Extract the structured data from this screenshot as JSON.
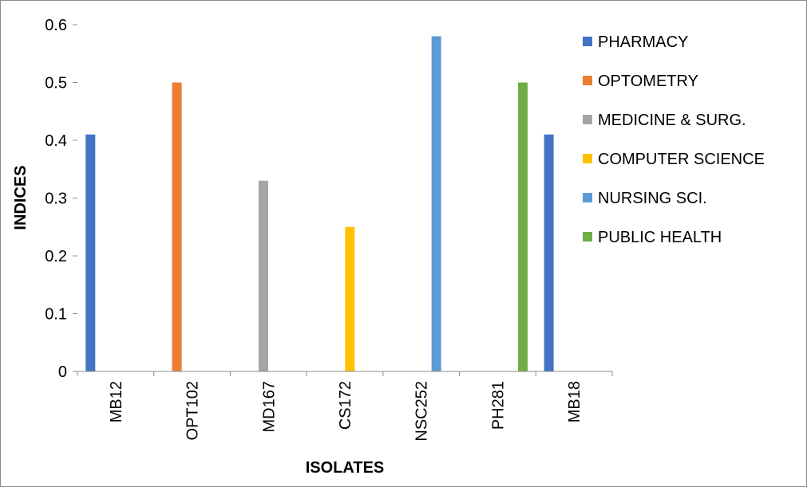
{
  "chart_data": {
    "type": "bar",
    "title": "",
    "xlabel": "ISOLATES",
    "ylabel": "INDICES",
    "categories": [
      "MB12",
      "OPT102",
      "MD167",
      "CS172",
      "NSC252",
      "PH281",
      "MB18"
    ],
    "ylim": [
      0,
      0.6
    ],
    "yticks": [
      "0",
      "0.1",
      "0.2",
      "0.3",
      "0.4",
      "0.5",
      "0.6"
    ],
    "grid": false,
    "legend_position": "right",
    "series": [
      {
        "name": "PHARMACY",
        "color": "#4472C4",
        "values": [
          0.41,
          0,
          0,
          0,
          0,
          0,
          0.41
        ]
      },
      {
        "name": "OPTOMETRY",
        "color": "#ED7D31",
        "values": [
          0,
          0.5,
          0,
          0,
          0,
          0,
          0
        ]
      },
      {
        "name": "MEDICINE & SURG.",
        "color": "#A5A5A5",
        "values": [
          0,
          0,
          0.33,
          0,
          0,
          0,
          0
        ]
      },
      {
        "name": "COMPUTER SCIENCE",
        "color": "#FFC000",
        "values": [
          0,
          0,
          0,
          0.25,
          0,
          0,
          0
        ]
      },
      {
        "name": "NURSING SCI.",
        "color": "#5B9BD5",
        "values": [
          0,
          0,
          0,
          0,
          0.58,
          0,
          0
        ]
      },
      {
        "name": "PUBLIC HEALTH",
        "color": "#70AD47",
        "values": [
          0,
          0,
          0,
          0,
          0,
          0.5,
          0
        ]
      }
    ]
  }
}
